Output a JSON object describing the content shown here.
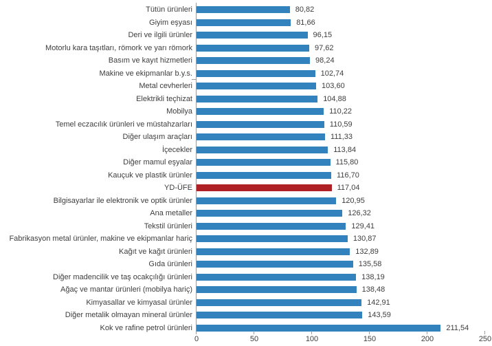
{
  "chart_data": {
    "type": "bar",
    "orientation": "horizontal",
    "title": "",
    "xlabel": "",
    "ylabel": "",
    "xlim": [
      0,
      250
    ],
    "grid": false,
    "legend": false,
    "bar_color": "#3182bd",
    "highlight_color": "#b02126",
    "axis_color": "#9b9b9b",
    "text_color": "#3d3d3d",
    "highlight_index": 14,
    "highlight_category": "YD-ÜFE",
    "categories": [
      "Tütün ürünleri",
      "Giyim eşyası",
      "Deri ve ilgili ürünler",
      "Motorlu kara taşıtları, römork ve yarı römork",
      "Basım ve kayıt hizmetleri",
      "Makine ve ekipmanlar b.y.s.",
      "Metal cevherleri",
      "Elektrikli teçhizat",
      "Mobilya",
      "Temel eczacılık ürünleri ve müstahzarları",
      "Diğer ulaşım araçları",
      "İçecekler",
      "Diğer mamul eşyalar",
      "Kauçuk ve plastik ürünler",
      "YD-ÜFE",
      "Bilgisayarlar ile elektronik ve optik ürünler",
      "Ana metaller",
      "Tekstil ürünleri",
      "Fabrikasyon metal ürünler, makine ve ekipmanlar hariç",
      "Kağıt ve kağıt ürünleri",
      "Gıda ürünleri",
      "Diğer madencilik ve taş ocakçılığı ürünleri",
      "Ağaç ve mantar ürünleri (mobilya hariç)",
      "Kimyasallar ve kimyasal ürünler",
      "Diğer metalik olmayan mineral ürünler",
      "Kok ve rafine petrol ürünleri"
    ],
    "values": [
      80.82,
      81.66,
      96.15,
      97.62,
      98.24,
      102.74,
      103.6,
      104.88,
      110.22,
      110.59,
      111.33,
      113.84,
      115.8,
      116.7,
      117.04,
      120.95,
      126.32,
      129.41,
      130.87,
      132.89,
      135.58,
      138.19,
      138.48,
      142.91,
      143.59,
      211.54
    ],
    "value_labels": [
      "80,82",
      "81,66",
      "96,15",
      "97,62",
      "98,24",
      "102,74",
      "103,60",
      "104,88",
      "110,22",
      "110,59",
      "111,33",
      "113,84",
      "115,80",
      "116,70",
      "117,04",
      "120,95",
      "126,32",
      "129,41",
      "130,87",
      "132,89",
      "135,58",
      "138,19",
      "138,48",
      "142,91",
      "143,59",
      "211,54"
    ],
    "x_ticks": [
      0,
      50,
      100,
      150,
      200,
      250
    ],
    "x_tick_labels": [
      "0",
      "50",
      "100",
      "150",
      "200",
      "250"
    ]
  }
}
